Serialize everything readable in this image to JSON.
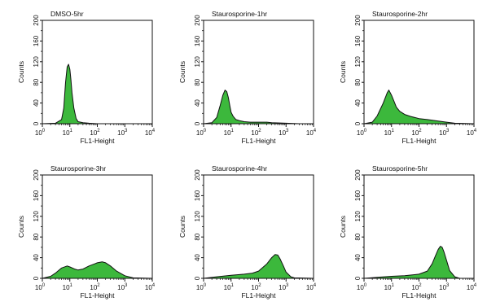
{
  "fill_color": "#3cb83c",
  "stroke_color": "#111111",
  "chart_data": [
    {
      "type": "area",
      "title": "DMSO-5hr",
      "xlabel": "FL1-Height",
      "ylabel": "Counts",
      "x_scale": "log",
      "xlim": [
        1,
        10000
      ],
      "ylim": [
        0,
        200
      ],
      "x_ticks": [
        {
          "base": "10",
          "exp": "0"
        },
        {
          "base": "10",
          "exp": "1"
        },
        {
          "base": "10",
          "exp": "2"
        },
        {
          "base": "10",
          "exp": "3"
        },
        {
          "base": "10",
          "exp": "4"
        }
      ],
      "y_ticks": [
        "0",
        "40",
        "80",
        "120",
        "160",
        "200"
      ],
      "x": [
        1,
        3,
        5,
        6,
        7,
        8,
        9,
        10,
        11,
        12,
        14,
        17,
        20,
        30,
        50,
        100,
        1000,
        10000
      ],
      "y": [
        0,
        1,
        8,
        30,
        80,
        110,
        115,
        105,
        85,
        60,
        30,
        10,
        4,
        2,
        1,
        0,
        0,
        0
      ]
    },
    {
      "type": "area",
      "title": "Staurosporine-1hr",
      "xlabel": "FL1-Height",
      "ylabel": "Counts",
      "x_scale": "log",
      "xlim": [
        1,
        10000
      ],
      "ylim": [
        0,
        200
      ],
      "x_ticks": [
        {
          "base": "10",
          "exp": "0"
        },
        {
          "base": "10",
          "exp": "1"
        },
        {
          "base": "10",
          "exp": "2"
        },
        {
          "base": "10",
          "exp": "3"
        },
        {
          "base": "10",
          "exp": "4"
        }
      ],
      "y_ticks": [
        "0",
        "40",
        "80",
        "120",
        "160",
        "200"
      ],
      "x": [
        1,
        2,
        3,
        4,
        5,
        6,
        7,
        8,
        9,
        10,
        12,
        15,
        20,
        30,
        50,
        100,
        200,
        300,
        1000,
        3000,
        10000
      ],
      "y": [
        0,
        2,
        12,
        35,
        55,
        65,
        62,
        50,
        35,
        22,
        14,
        8,
        6,
        4,
        3,
        3,
        3,
        2,
        1,
        0,
        0
      ]
    },
    {
      "type": "area",
      "title": "Staurosporine-2hr",
      "xlabel": "FL1-Height",
      "ylabel": "Counts",
      "x_scale": "log",
      "xlim": [
        1,
        10000
      ],
      "ylim": [
        0,
        200
      ],
      "x_ticks": [
        {
          "base": "10",
          "exp": "0"
        },
        {
          "base": "10",
          "exp": "1"
        },
        {
          "base": "10",
          "exp": "2"
        },
        {
          "base": "10",
          "exp": "3"
        },
        {
          "base": "10",
          "exp": "4"
        }
      ],
      "y_ticks": [
        "0",
        "40",
        "80",
        "120",
        "160",
        "200"
      ],
      "x": [
        1,
        2,
        3,
        5,
        7,
        8,
        10,
        12,
        15,
        20,
        30,
        50,
        100,
        200,
        500,
        1000,
        2000,
        10000
      ],
      "y": [
        0,
        3,
        15,
        40,
        60,
        65,
        55,
        45,
        32,
        24,
        18,
        14,
        10,
        8,
        5,
        3,
        1,
        0
      ]
    },
    {
      "type": "area",
      "title": "Staurosporine-3hr",
      "xlabel": "FL1-Height",
      "ylabel": "Counts",
      "x_scale": "log",
      "xlim": [
        1,
        10000
      ],
      "ylim": [
        0,
        200
      ],
      "x_ticks": [
        {
          "base": "10",
          "exp": "0"
        },
        {
          "base": "10",
          "exp": "1"
        },
        {
          "base": "10",
          "exp": "2"
        },
        {
          "base": "10",
          "exp": "3"
        },
        {
          "base": "10",
          "exp": "4"
        }
      ],
      "y_ticks": [
        "0",
        "40",
        "80",
        "120",
        "160",
        "200"
      ],
      "x": [
        1,
        2,
        3,
        5,
        8,
        10,
        15,
        20,
        30,
        50,
        80,
        100,
        150,
        200,
        300,
        500,
        1000,
        2000,
        10000
      ],
      "y": [
        0,
        4,
        10,
        20,
        24,
        22,
        18,
        16,
        18,
        24,
        28,
        30,
        32,
        30,
        24,
        14,
        5,
        1,
        0
      ]
    },
    {
      "type": "area",
      "title": "Staurosporine-4hr",
      "xlabel": "FL1-Height",
      "ylabel": "Counts",
      "x_scale": "log",
      "xlim": [
        1,
        10000
      ],
      "ylim": [
        0,
        200
      ],
      "x_ticks": [
        {
          "base": "10",
          "exp": "0"
        },
        {
          "base": "10",
          "exp": "1"
        },
        {
          "base": "10",
          "exp": "2"
        },
        {
          "base": "10",
          "exp": "3"
        },
        {
          "base": "10",
          "exp": "4"
        }
      ],
      "y_ticks": [
        "0",
        "40",
        "80",
        "120",
        "160",
        "200"
      ],
      "x": [
        1,
        3,
        10,
        30,
        60,
        100,
        200,
        300,
        400,
        500,
        600,
        800,
        1000,
        1500,
        2000,
        10000
      ],
      "y": [
        0,
        3,
        6,
        8,
        10,
        14,
        28,
        40,
        46,
        45,
        38,
        24,
        12,
        3,
        1,
        0
      ]
    },
    {
      "type": "area",
      "title": "Staurosporine-5hr",
      "xlabel": "FL1-Height",
      "ylabel": "Counts",
      "x_scale": "log",
      "xlim": [
        1,
        10000
      ],
      "ylim": [
        0,
        200
      ],
      "x_ticks": [
        {
          "base": "10",
          "exp": "0"
        },
        {
          "base": "10",
          "exp": "1"
        },
        {
          "base": "10",
          "exp": "2"
        },
        {
          "base": "10",
          "exp": "3"
        },
        {
          "base": "10",
          "exp": "4"
        }
      ],
      "y_ticks": [
        "0",
        "40",
        "80",
        "120",
        "160",
        "200"
      ],
      "x": [
        1,
        3,
        10,
        30,
        100,
        200,
        300,
        400,
        500,
        600,
        700,
        800,
        1000,
        1300,
        2000,
        3000,
        10000
      ],
      "y": [
        0,
        2,
        4,
        5,
        8,
        14,
        28,
        44,
        56,
        62,
        60,
        52,
        35,
        15,
        3,
        0,
        0
      ]
    }
  ]
}
